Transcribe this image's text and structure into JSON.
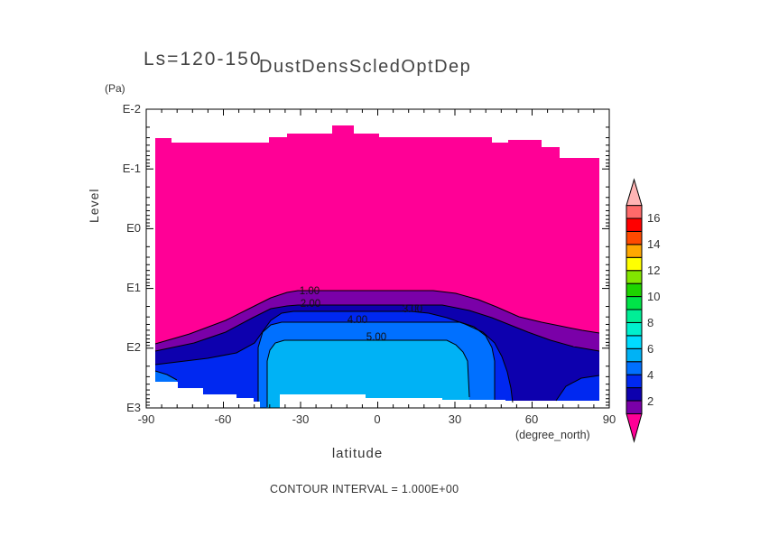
{
  "titles": {
    "ls_range": "Ls=120-150",
    "main": "DustDensScledOptDep"
  },
  "axes": {
    "y": {
      "unit": "(Pa)",
      "label": "Level",
      "ticks": [
        "E-2",
        "E-1",
        "E0",
        "E1",
        "E2",
        "E3"
      ]
    },
    "x": {
      "label": "latitude",
      "unit": "(degree_north)",
      "ticks": [
        "-90",
        "-60",
        "-30",
        "0",
        "30",
        "60",
        "90"
      ]
    }
  },
  "contour_labels": [
    "1.00",
    "2.00",
    "3.00",
    "4.00",
    "5.00"
  ],
  "footer_text": "CONTOUR INTERVAL = 1.000E+00",
  "colorbar": {
    "labels_top_to_bottom": [
      "16",
      "14",
      "12",
      "10",
      "8",
      "6",
      "4",
      "2"
    ],
    "colors_bottom_to_top": [
      "#7A00A8",
      "#0D00AE",
      "#0028F0",
      "#0070FF",
      "#00B2F5",
      "#00DCFF",
      "#00F0CD",
      "#00EE96",
      "#00E448",
      "#1ED400",
      "#82E600",
      "#FFFF00",
      "#FFA800",
      "#FF4A00",
      "#FF0000",
      "#FF6A6A"
    ],
    "arrow_bottom_color": "#FF0096",
    "arrow_top_color": "#FFB4B4"
  },
  "chart_data": {
    "type": "heatmap",
    "title": "DustDensScledOptDep",
    "subtitle": "Ls=120-150",
    "xlabel": "latitude (degree_north)",
    "x_range": [
      -90,
      90
    ],
    "x_ticks": [
      -90,
      -60,
      -30,
      0,
      30,
      60,
      90
    ],
    "ylabel": "Level (Pa)",
    "y_scale": "log",
    "y_ticks_pa": [
      0.01,
      0.1,
      1,
      10,
      100,
      1000
    ],
    "contour_interval": 1.0,
    "labeled_contour_levels": [
      1,
      2,
      3,
      4,
      5
    ],
    "colorbar_tick_values": [
      2,
      4,
      6,
      8,
      10,
      12,
      14,
      16
    ],
    "bands_present_in_field": [
      "<1 magenta",
      "1-2 purple",
      "2-3 navy",
      "3-4 blue",
      "4-5 medium blue",
      "5-6 light blue"
    ],
    "field_description": "Value <1 (magenta) everywhere above ~10 Pa from data top (~0.03-0.08 Pa, stepped edge) down to ~15-60 Pa. Nested bands 1-5+ form a plateau centered near the equator: labeled contours 1.00-5.00 stacked between ~12 Pa and ~80 Pa from about 50S to 45N; maximum band 5-6 (light blue) fills ~45S-40N from ~80 Pa down to data bottom (~400-700 Pa). Poleward of ~45N values drop: large 2-3 (navy) region 45N-85N near surface with small 3-4 patch at bottom right corner; at far south (85S-75S) a small 4-5 patch near 150-300 Pa. White = no data below the stepped terrain boundary."
  }
}
